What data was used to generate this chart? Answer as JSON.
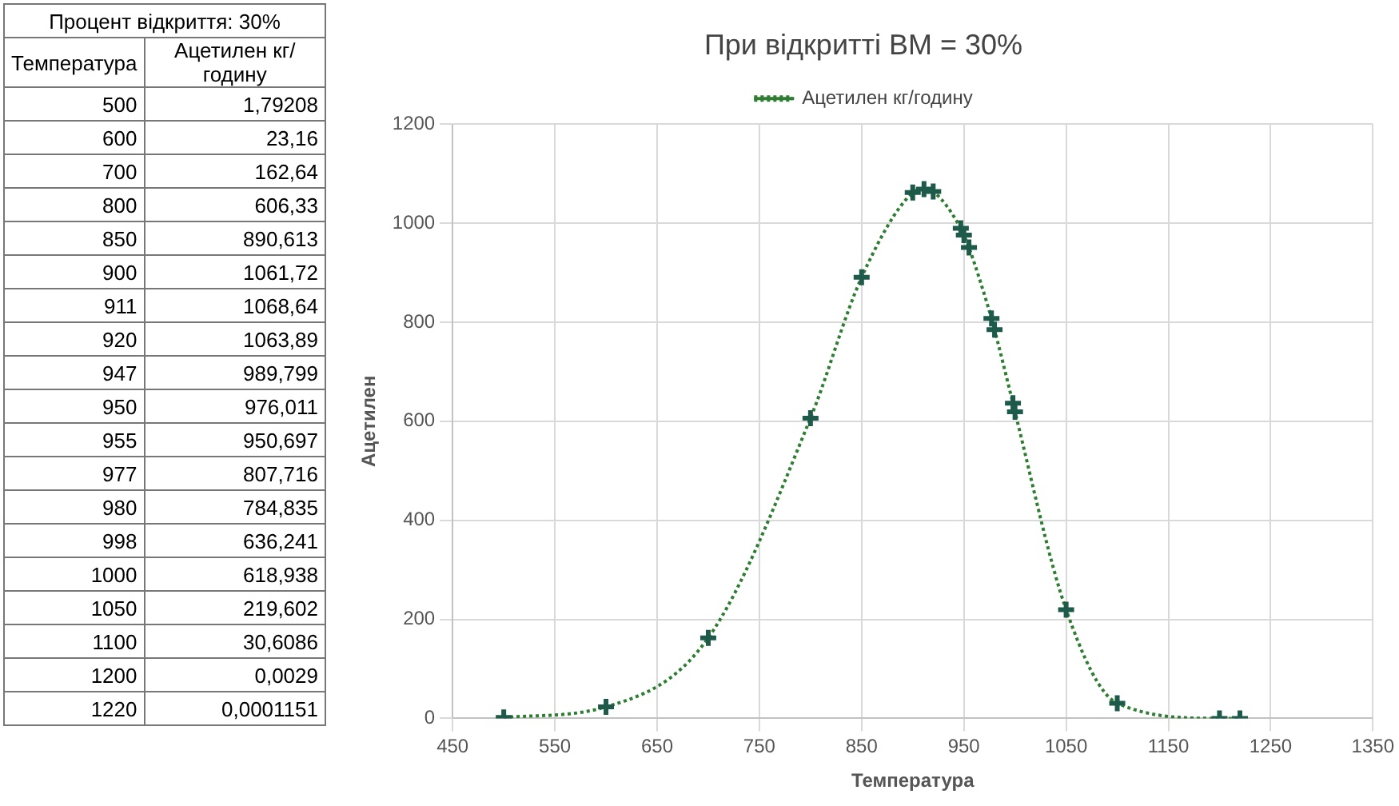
{
  "chart_data": [
    {
      "type": "other",
      "annotations": [
        "Процент відкриття: 30%",
        "Температура",
        "Ацетилен кг/годину",
        "500",
        "1,79208",
        "600",
        "23,16",
        "700",
        "162,64",
        "800",
        "606,33",
        "850",
        "890,613",
        "900",
        "1061,72",
        "911",
        "1068,64",
        "920",
        "1063,89",
        "947",
        "989,799",
        "950",
        "976,011",
        "955",
        "950,697",
        "977",
        "807,716",
        "980",
        "784,835",
        "998",
        "636,241",
        "1000",
        "618,938",
        "1050",
        "219,602",
        "1100",
        "30,6086",
        "1200",
        "0,0029",
        "1220",
        "0,0001151"
      ]
    },
    {
      "type": "line",
      "title": "При відкритті ВМ = 30%",
      "xlabel": "Температура",
      "ylabel": "Ацетилен",
      "x": [
        500,
        600,
        700,
        800,
        850,
        900,
        911,
        920,
        947,
        950,
        955,
        977,
        980,
        998,
        1000,
        1050,
        1100,
        1200,
        1220
      ],
      "series": [
        {
          "name": "Ацетилен кг/годину",
          "color": "#2e7d32",
          "values": [
            1.79208,
            23.16,
            162.64,
            606.33,
            890.613,
            1061.72,
            1068.64,
            1063.89,
            989.799,
            976.011,
            950.697,
            807.716,
            784.835,
            636.241,
            618.938,
            219.602,
            30.6086,
            0.0029,
            0.0001151
          ]
        }
      ],
      "xlim": [
        450,
        1350
      ],
      "xticks": [
        450,
        550,
        650,
        750,
        850,
        950,
        1050,
        1150,
        1250,
        1350
      ],
      "ylim": [
        0,
        1200
      ],
      "yticks": [
        0,
        200,
        400,
        600,
        800,
        1000,
        1200
      ],
      "grid": true,
      "legend": "top",
      "marker": "cross",
      "line_style": "dotted"
    }
  ]
}
